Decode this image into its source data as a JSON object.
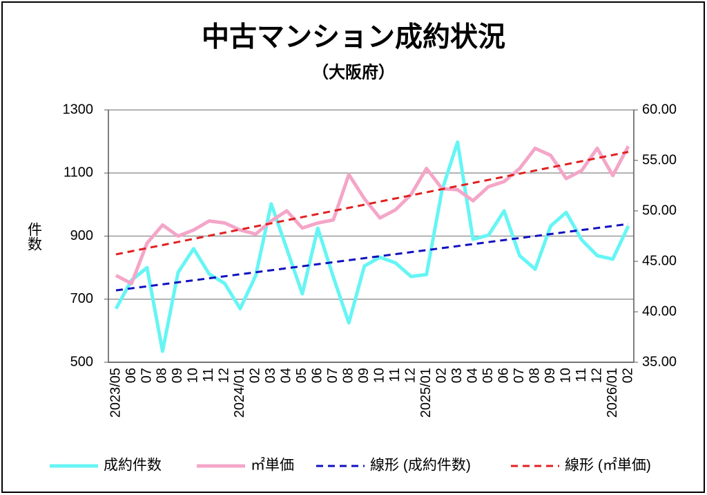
{
  "chart_data": {
    "type": "line",
    "title": "中古マンション成約状況",
    "subtitle": "（大阪府）",
    "y_label": "件数",
    "categories": [
      "2023/05",
      "06",
      "07",
      "08",
      "09",
      "10",
      "11",
      "12",
      "2024/01",
      "02",
      "03",
      "04",
      "05",
      "06",
      "07",
      "08",
      "09",
      "10",
      "11",
      "12",
      "2025/01",
      "02",
      "03",
      "04",
      "05",
      "06",
      "07",
      "08",
      "09",
      "10",
      "11",
      "12",
      "2026/01",
      "02"
    ],
    "ylim": [
      500,
      1300
    ],
    "yticks": [
      500,
      700,
      900,
      1100,
      1300
    ],
    "y2lim": [
      35,
      60
    ],
    "y2ticks": [
      {
        "value": 35,
        "label": "35.00"
      },
      {
        "value": 40,
        "label": "40.00"
      },
      {
        "value": 45,
        "label": "45.00"
      },
      {
        "value": 50,
        "label": "50.00"
      },
      {
        "value": 55,
        "label": "55.00"
      },
      {
        "value": 60,
        "label": "60.00"
      }
    ],
    "grid": true,
    "legend": "bottom",
    "series": [
      {
        "name": "成約件数",
        "color": "#66f5f5",
        "values": [
          670,
          760,
          800,
          535,
          785,
          860,
          780,
          750,
          670,
          775,
          1002,
          860,
          717,
          925,
          770,
          625,
          805,
          833,
          815,
          772,
          778,
          1045,
          1198,
          890,
          903,
          980,
          838,
          795,
          932,
          975,
          888,
          838,
          827,
          932
        ]
      },
      {
        "name": "㎡単価",
        "color": "#f4a6c8",
        "axis": "y2",
        "values": [
          43.6,
          42.8,
          46.8,
          48.6,
          47.5,
          48.1,
          49.0,
          48.8,
          48.1,
          47.7,
          49.0,
          50.0,
          48.3,
          48.8,
          49.1,
          53.6,
          51.2,
          49.3,
          50.1,
          51.6,
          54.2,
          52.2,
          52.1,
          51.0,
          52.4,
          52.9,
          54.2,
          56.2,
          55.5,
          53.2,
          54.0,
          56.2,
          53.5,
          56.4
        ]
      },
      {
        "name": "線形 (成約件数)",
        "color": "#1010c0",
        "trend_of": 0,
        "dashed": true
      },
      {
        "name": "線形 (㎡単価)",
        "color": "#e02020",
        "trend_of": 1,
        "axis": "y2",
        "dashed": true
      }
    ]
  }
}
